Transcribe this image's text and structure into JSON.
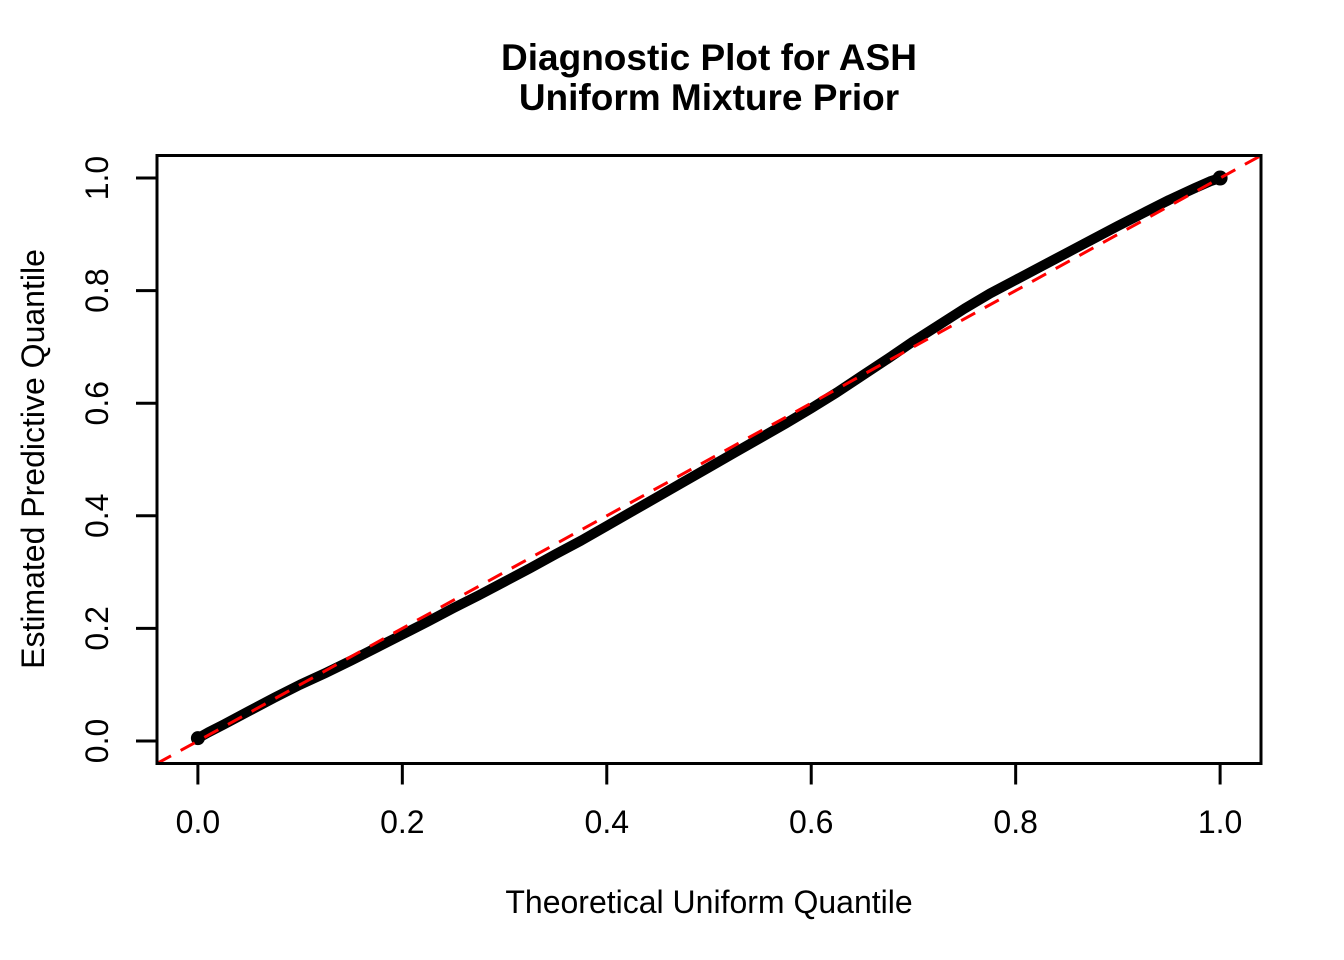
{
  "title": {
    "line1": "Diagnostic Plot for ASH",
    "line2": "Uniform Mixture Prior"
  },
  "axes": {
    "x": {
      "label": "Theoretical Uniform Quantile",
      "tick_values": [
        0.0,
        0.2,
        0.4,
        0.6,
        0.8,
        1.0
      ],
      "tick_labels": [
        "0.0",
        "0.2",
        "0.4",
        "0.6",
        "0.8",
        "1.0"
      ],
      "range": [
        -0.04,
        1.04
      ]
    },
    "y": {
      "label": "Estimated Predictive Quantile",
      "tick_values": [
        0.0,
        0.2,
        0.4,
        0.6,
        0.8,
        1.0
      ],
      "tick_labels": [
        "0.0",
        "0.2",
        "0.4",
        "0.6",
        "0.8",
        "1.0"
      ],
      "range": [
        -0.04,
        1.04
      ]
    }
  },
  "colors": {
    "points": "#000000",
    "reference_line": "#FF0000",
    "frame": "#000000",
    "text": "#000000",
    "background": "#FFFFFF"
  },
  "chart_data": {
    "type": "scatter",
    "title": "Diagnostic Plot for ASH\nUniform Mixture Prior",
    "xlabel": "Theoretical Uniform Quantile",
    "ylabel": "Estimated Predictive Quantile",
    "xlim": [
      -0.04,
      1.04
    ],
    "ylim": [
      -0.04,
      1.04
    ],
    "grid": false,
    "legend": "none",
    "series": [
      {
        "name": "predictive-quantiles-curve",
        "type": "dense-scatter-curve",
        "color": "#000000",
        "points": [
          [
            0.0,
            0.005
          ],
          [
            0.01,
            0.015
          ],
          [
            0.025,
            0.029
          ],
          [
            0.05,
            0.053
          ],
          [
            0.075,
            0.077
          ],
          [
            0.1,
            0.1
          ],
          [
            0.125,
            0.121
          ],
          [
            0.15,
            0.143
          ],
          [
            0.175,
            0.166
          ],
          [
            0.2,
            0.189
          ],
          [
            0.225,
            0.212
          ],
          [
            0.25,
            0.236
          ],
          [
            0.275,
            0.259
          ],
          [
            0.3,
            0.283
          ],
          [
            0.325,
            0.307
          ],
          [
            0.35,
            0.332
          ],
          [
            0.375,
            0.356
          ],
          [
            0.4,
            0.382
          ],
          [
            0.425,
            0.408
          ],
          [
            0.45,
            0.434
          ],
          [
            0.475,
            0.46
          ],
          [
            0.5,
            0.486
          ],
          [
            0.525,
            0.512
          ],
          [
            0.55,
            0.538
          ],
          [
            0.575,
            0.564
          ],
          [
            0.6,
            0.591
          ],
          [
            0.625,
            0.619
          ],
          [
            0.65,
            0.649
          ],
          [
            0.675,
            0.679
          ],
          [
            0.7,
            0.71
          ],
          [
            0.725,
            0.739
          ],
          [
            0.75,
            0.768
          ],
          [
            0.775,
            0.795
          ],
          [
            0.8,
            0.819
          ],
          [
            0.825,
            0.843
          ],
          [
            0.85,
            0.867
          ],
          [
            0.875,
            0.891
          ],
          [
            0.9,
            0.915
          ],
          [
            0.925,
            0.938
          ],
          [
            0.95,
            0.961
          ],
          [
            0.975,
            0.982
          ],
          [
            0.99,
            0.994
          ],
          [
            1.0,
            1.0
          ]
        ]
      },
      {
        "name": "identity-reference-line",
        "type": "line",
        "style": "dashed",
        "color": "#FF0000",
        "points": [
          [
            -0.04,
            -0.04
          ],
          [
            1.04,
            1.04
          ]
        ]
      }
    ]
  }
}
